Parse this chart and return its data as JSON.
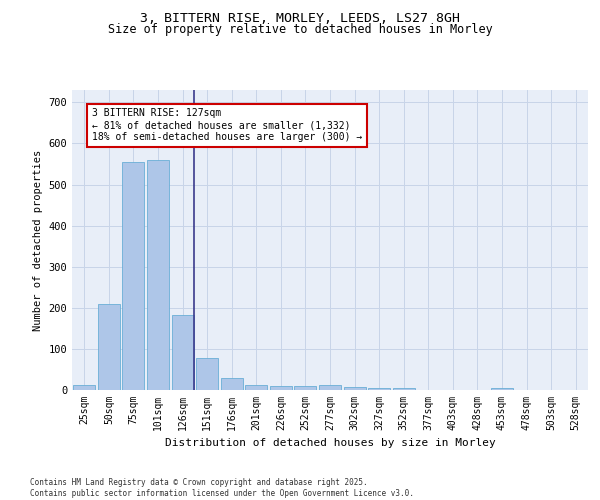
{
  "title_line1": "3, BITTERN RISE, MORLEY, LEEDS, LS27 8GH",
  "title_line2": "Size of property relative to detached houses in Morley",
  "xlabel": "Distribution of detached houses by size in Morley",
  "ylabel": "Number of detached properties",
  "categories": [
    "25sqm",
    "50sqm",
    "75sqm",
    "101sqm",
    "126sqm",
    "151sqm",
    "176sqm",
    "201sqm",
    "226sqm",
    "252sqm",
    "277sqm",
    "302sqm",
    "327sqm",
    "352sqm",
    "377sqm",
    "403sqm",
    "428sqm",
    "453sqm",
    "478sqm",
    "503sqm",
    "528sqm"
  ],
  "values": [
    12,
    210,
    555,
    560,
    183,
    78,
    30,
    13,
    10,
    10,
    11,
    7,
    5,
    4,
    0,
    0,
    0,
    4,
    0,
    0,
    0
  ],
  "bar_color": "#aec6e8",
  "bar_edgecolor": "#6aaed6",
  "vline_idx": 4,
  "vline_color": "#3a3a8c",
  "annotation_text": "3 BITTERN RISE: 127sqm\n← 81% of detached houses are smaller (1,332)\n18% of semi-detached houses are larger (300) →",
  "annotation_box_color": "#cc0000",
  "ylim": [
    0,
    730
  ],
  "yticks": [
    0,
    100,
    200,
    300,
    400,
    500,
    600,
    700
  ],
  "footer_text": "Contains HM Land Registry data © Crown copyright and database right 2025.\nContains public sector information licensed under the Open Government Licence v3.0.",
  "bg_color": "#e8eef8",
  "grid_color": "#c8d4e8",
  "title_fontsize": 9.5,
  "subtitle_fontsize": 8.5,
  "tick_fontsize": 7,
  "ylabel_fontsize": 7.5,
  "xlabel_fontsize": 8,
  "annotation_fontsize": 7,
  "footer_fontsize": 5.5
}
